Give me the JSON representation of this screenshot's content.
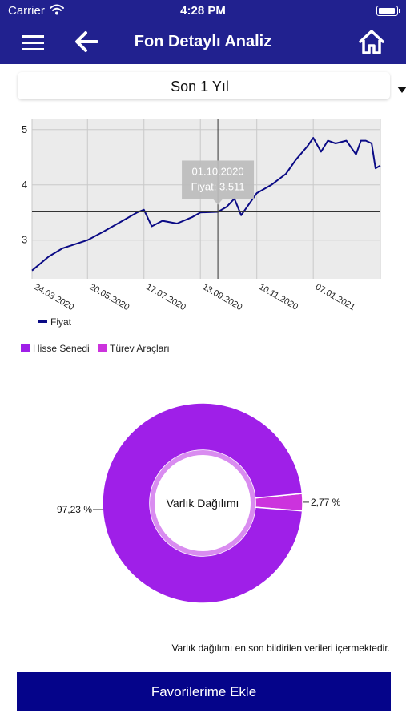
{
  "status_bar": {
    "carrier": "Carrier",
    "time": "4:28 PM"
  },
  "nav": {
    "title": "Fon Detaylı Analiz"
  },
  "period_selector": {
    "selected": "Son 1 Yıl"
  },
  "colors": {
    "nav_background": "#21218f",
    "line_series": "#0a0a85",
    "hisse_senedi": "#9f1fe8",
    "turev_araclari": "#cc33dd",
    "button_background": "#05048a"
  },
  "chart_data": [
    {
      "type": "line",
      "x_ticks": [
        "24.03.2020",
        "20.05.2020",
        "17.07.2020",
        "13.09.2020",
        "10.11.2020",
        "07.01.2021"
      ],
      "y_ticks": [
        "3",
        "4",
        "5"
      ],
      "ylim": [
        2.3,
        5.2
      ],
      "grid": true,
      "legend": "bottom-left",
      "series": [
        {
          "name": "Fiyat",
          "x": [
            "24.03.2020",
            "10.04.2020",
            "24.04.2020",
            "20.05.2020",
            "05.06.2020",
            "25.06.2020",
            "10.07.2020",
            "17.07.2020",
            "25.07.2020",
            "05.08.2020",
            "20.08.2020",
            "05.09.2020",
            "13.09.2020",
            "01.10.2020",
            "10.10.2020",
            "18.10.2020",
            "25.10.2020",
            "10.11.2020",
            "25.11.2020",
            "10.12.2020",
            "20.12.2020",
            "01.01.2021",
            "07.01.2021",
            "15.01.2021",
            "22.01.2021",
            "30.01.2021",
            "10.02.2021",
            "20.02.2021",
            "25.02.2021",
            "02.03.2021",
            "08.03.2021",
            "12.03.2021",
            "17.03.2021"
          ],
          "y": [
            2.45,
            2.7,
            2.85,
            3.0,
            3.15,
            3.35,
            3.5,
            3.55,
            3.25,
            3.35,
            3.3,
            3.42,
            3.5,
            3.511,
            3.6,
            3.75,
            3.45,
            3.85,
            4.0,
            4.2,
            4.45,
            4.7,
            4.85,
            4.6,
            4.8,
            4.75,
            4.8,
            4.55,
            4.8,
            4.8,
            4.75,
            4.3,
            4.35
          ]
        }
      ],
      "tooltip": {
        "date": "01.10.2020",
        "label": "Fiyat: 3.511"
      }
    },
    {
      "type": "pie",
      "center_label": "Varlık Dağılımı",
      "series": [
        {
          "name": "Hisse Senedi",
          "value": 97.23,
          "label": "97,23 %"
        },
        {
          "name": "Türev Araçları",
          "value": 2.77,
          "label": "2,77 %"
        }
      ],
      "legend": "top-left"
    }
  ],
  "footnote": "Varlık dağılımı en son bildirilen verileri içermektedir.",
  "favorite_button": {
    "label": "Favorilerime Ekle"
  }
}
